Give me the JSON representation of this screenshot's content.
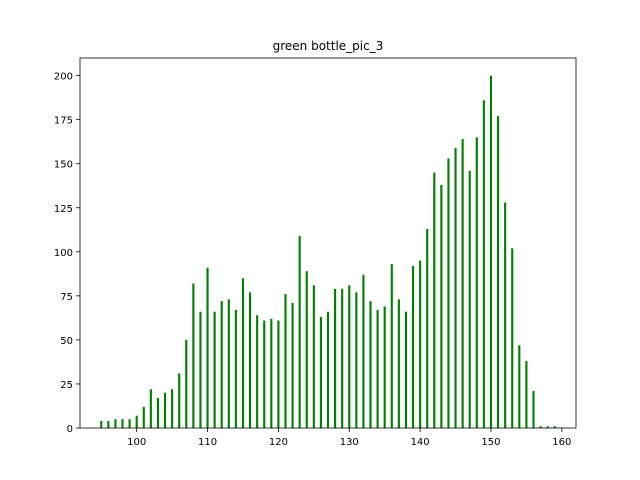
{
  "chart_data": {
    "type": "bar",
    "title": "green bottle_pic_3",
    "xlabel": "",
    "ylabel": "",
    "xlim": [
      92,
      162
    ],
    "ylim": [
      0,
      210
    ],
    "x_ticks": [
      100,
      110,
      120,
      130,
      140,
      150,
      160
    ],
    "y_ticks": [
      0,
      25,
      50,
      75,
      100,
      125,
      150,
      175,
      200
    ],
    "bar_color": "#008000",
    "grid": false,
    "series": [
      {
        "x": [
          95,
          96,
          97,
          98,
          99,
          100,
          101,
          102,
          103,
          104,
          105,
          106,
          107,
          108,
          109,
          110,
          111,
          112,
          113,
          114,
          115,
          116,
          117,
          118,
          119,
          120,
          121,
          122,
          123,
          124,
          125,
          126,
          127,
          128,
          129,
          130,
          131,
          132,
          133,
          134,
          135,
          136,
          137,
          138,
          139,
          140,
          141,
          142,
          143,
          144,
          145,
          146,
          147,
          148,
          149,
          150,
          151,
          152,
          153,
          154,
          155,
          156,
          157,
          158,
          159
        ],
        "values": [
          4,
          4,
          5,
          5,
          5,
          7,
          12,
          22,
          17,
          20,
          22,
          31,
          50,
          82,
          66,
          91,
          66,
          72,
          73,
          67,
          85,
          77,
          64,
          61,
          62,
          61,
          76,
          71,
          109,
          89,
          81,
          63,
          66,
          79,
          79,
          81,
          77,
          87,
          72,
          67,
          69,
          93,
          73,
          66,
          92,
          95,
          113,
          145,
          138,
          153,
          159,
          164,
          146,
          165,
          186,
          200,
          177,
          128,
          102,
          47,
          38,
          21,
          1,
          1,
          1
        ]
      }
    ]
  }
}
